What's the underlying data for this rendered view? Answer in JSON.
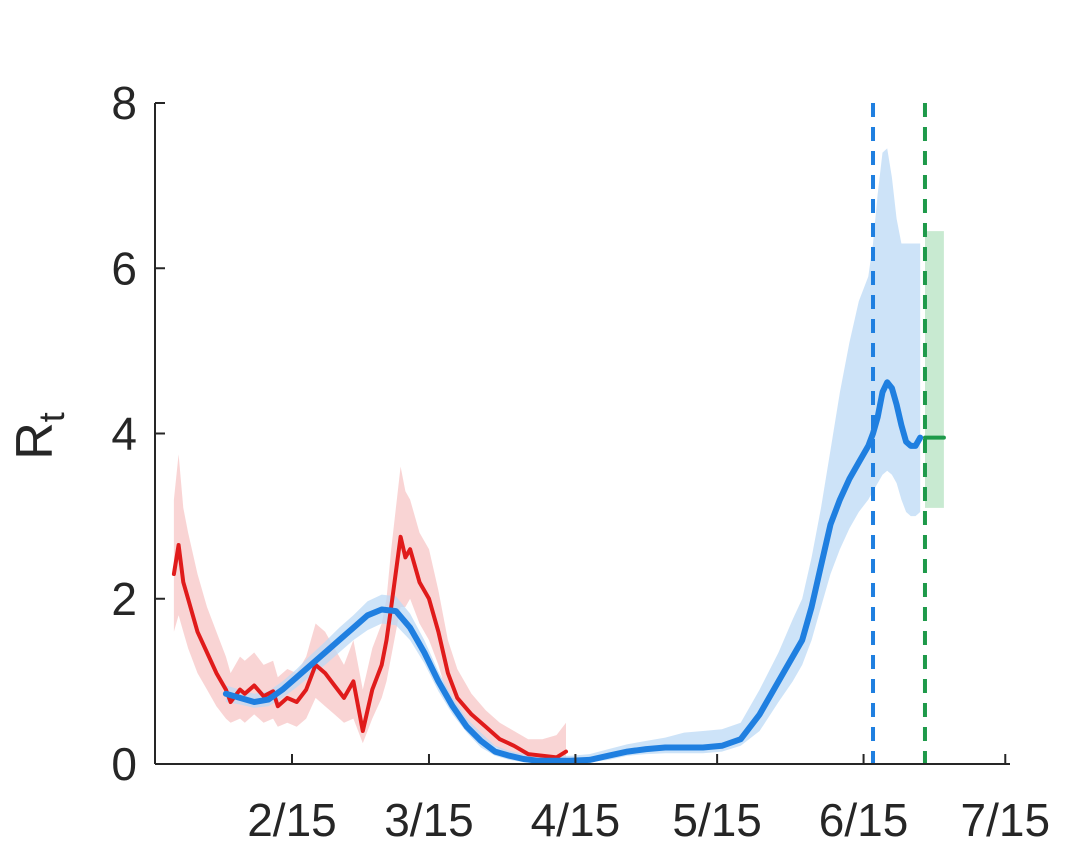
{
  "chart_data": {
    "type": "line",
    "title": "",
    "xlabel": "",
    "ylabel": "R",
    "ylabel_subscript": "t",
    "ylim": [
      0,
      8
    ],
    "xlim": [
      "2020-01-17",
      "2020-07-16"
    ],
    "yticks": [
      {
        "value": 0,
        "label": "0"
      },
      {
        "value": 2,
        "label": "2"
      },
      {
        "value": 4,
        "label": "4"
      },
      {
        "value": 6,
        "label": "6"
      },
      {
        "value": 8,
        "label": "8"
      }
    ],
    "xticks": [
      {
        "date": "2020-02-15",
        "label": "2/15"
      },
      {
        "date": "2020-03-15",
        "label": "3/15"
      },
      {
        "date": "2020-04-15",
        "label": "4/15"
      },
      {
        "date": "2020-05-15",
        "label": "5/15"
      },
      {
        "date": "2020-06-15",
        "label": "6/15"
      },
      {
        "date": "2020-07-15",
        "label": "7/15"
      }
    ],
    "grid": false,
    "legend": "none",
    "colors": {
      "red_line": "#e01b1b",
      "red_band": "#f7c6c6",
      "blue_line": "#1f7fe0",
      "blue_band": "#bcdaf6",
      "green_line": "#1e9a4a",
      "green_band": "#b6e3c2",
      "axis": "#262626"
    },
    "vlines": [
      {
        "date": "2020-06-17",
        "style": "dashed",
        "color": "#1f7fe0"
      },
      {
        "date": "2020-06-28",
        "style": "dashed",
        "color": "#1e9a4a"
      }
    ],
    "series": [
      {
        "color": "#e01b1b",
        "band_color": "#f7c6c6",
        "x": [
          "2020-01-21",
          "2020-01-22",
          "2020-01-23",
          "2020-01-24",
          "2020-01-26",
          "2020-01-28",
          "2020-01-30",
          "2020-02-01",
          "2020-02-02",
          "2020-02-04",
          "2020-02-05",
          "2020-02-07",
          "2020-02-09",
          "2020-02-11",
          "2020-02-12",
          "2020-02-14",
          "2020-02-16",
          "2020-02-18",
          "2020-02-20",
          "2020-02-22",
          "2020-02-24",
          "2020-02-26",
          "2020-02-28",
          "2020-03-01",
          "2020-03-03",
          "2020-03-05",
          "2020-03-06",
          "2020-03-07",
          "2020-03-09",
          "2020-03-10",
          "2020-03-11",
          "2020-03-13",
          "2020-03-15",
          "2020-03-17",
          "2020-03-19",
          "2020-03-21",
          "2020-03-24",
          "2020-03-27",
          "2020-03-30",
          "2020-04-02",
          "2020-04-05",
          "2020-04-08",
          "2020-04-11",
          "2020-04-13"
        ],
        "y": [
          2.3,
          2.65,
          2.2,
          2.0,
          1.6,
          1.35,
          1.1,
          0.9,
          0.75,
          0.9,
          0.85,
          0.95,
          0.82,
          0.88,
          0.7,
          0.8,
          0.75,
          0.9,
          1.2,
          1.1,
          0.95,
          0.8,
          1.0,
          0.4,
          0.9,
          1.2,
          1.5,
          1.9,
          2.75,
          2.5,
          2.6,
          2.2,
          2.0,
          1.6,
          1.1,
          0.8,
          0.6,
          0.45,
          0.3,
          0.22,
          0.12,
          0.1,
          0.08,
          0.15
        ],
        "lower": [
          1.6,
          1.8,
          1.6,
          1.4,
          1.1,
          0.9,
          0.7,
          0.55,
          0.5,
          0.55,
          0.5,
          0.6,
          0.5,
          0.55,
          0.45,
          0.5,
          0.45,
          0.55,
          0.8,
          0.7,
          0.6,
          0.5,
          0.55,
          0.25,
          0.55,
          0.8,
          1.0,
          1.3,
          1.9,
          1.9,
          2.0,
          1.7,
          1.5,
          1.2,
          0.8,
          0.55,
          0.4,
          0.28,
          0.18,
          0.1,
          0.05,
          0.03,
          0.02,
          0.05
        ],
        "upper": [
          3.2,
          3.75,
          3.1,
          2.8,
          2.3,
          1.9,
          1.6,
          1.3,
          1.1,
          1.3,
          1.25,
          1.35,
          1.2,
          1.25,
          1.05,
          1.15,
          1.1,
          1.3,
          1.7,
          1.6,
          1.4,
          1.2,
          1.5,
          0.9,
          1.4,
          1.7,
          2.0,
          2.6,
          3.6,
          3.3,
          3.2,
          2.8,
          2.6,
          2.1,
          1.5,
          1.15,
          0.85,
          0.65,
          0.5,
          0.4,
          0.3,
          0.3,
          0.35,
          0.5
        ]
      },
      {
        "color": "#1f7fe0",
        "band_color": "#bcdaf6",
        "x": [
          "2020-02-01",
          "2020-02-04",
          "2020-02-07",
          "2020-02-10",
          "2020-02-13",
          "2020-02-16",
          "2020-02-19",
          "2020-02-22",
          "2020-02-25",
          "2020-02-28",
          "2020-03-02",
          "2020-03-05",
          "2020-03-08",
          "2020-03-11",
          "2020-03-14",
          "2020-03-17",
          "2020-03-20",
          "2020-03-23",
          "2020-03-26",
          "2020-03-29",
          "2020-04-01",
          "2020-04-04",
          "2020-04-07",
          "2020-04-10",
          "2020-04-14",
          "2020-04-18",
          "2020-04-22",
          "2020-04-26",
          "2020-04-30",
          "2020-05-04",
          "2020-05-08",
          "2020-05-12",
          "2020-05-16",
          "2020-05-20",
          "2020-05-24",
          "2020-05-28",
          "2020-05-31",
          "2020-06-02",
          "2020-06-04",
          "2020-06-06",
          "2020-06-08",
          "2020-06-10",
          "2020-06-12",
          "2020-06-14",
          "2020-06-16",
          "2020-06-17",
          "2020-06-18",
          "2020-06-19",
          "2020-06-20",
          "2020-06-21",
          "2020-06-22",
          "2020-06-23",
          "2020-06-24",
          "2020-06-25",
          "2020-06-26",
          "2020-06-27"
        ],
        "y": [
          0.85,
          0.8,
          0.75,
          0.78,
          0.9,
          1.05,
          1.2,
          1.35,
          1.5,
          1.65,
          1.8,
          1.87,
          1.85,
          1.65,
          1.35,
          1.0,
          0.7,
          0.45,
          0.28,
          0.15,
          0.1,
          0.06,
          0.04,
          0.04,
          0.04,
          0.05,
          0.1,
          0.15,
          0.18,
          0.2,
          0.2,
          0.2,
          0.22,
          0.3,
          0.6,
          1.0,
          1.3,
          1.5,
          1.9,
          2.4,
          2.9,
          3.2,
          3.45,
          3.65,
          3.85,
          4.0,
          4.2,
          4.5,
          4.62,
          4.55,
          4.35,
          4.1,
          3.9,
          3.85,
          3.85,
          3.95
        ],
        "lower": [
          0.75,
          0.72,
          0.68,
          0.7,
          0.8,
          0.93,
          1.07,
          1.2,
          1.35,
          1.5,
          1.62,
          1.7,
          1.68,
          1.5,
          1.22,
          0.88,
          0.6,
          0.38,
          0.2,
          0.1,
          0.05,
          0.02,
          0.01,
          0.01,
          0.01,
          0.02,
          0.05,
          0.1,
          0.12,
          0.13,
          0.13,
          0.13,
          0.15,
          0.22,
          0.4,
          0.75,
          1.0,
          1.2,
          1.5,
          1.9,
          2.3,
          2.6,
          2.85,
          3.05,
          3.2,
          3.3,
          3.4,
          3.5,
          3.55,
          3.5,
          3.4,
          3.2,
          3.05,
          3.0,
          3.0,
          3.05
        ],
        "upper": [
          0.95,
          0.9,
          0.85,
          0.88,
          1.0,
          1.15,
          1.32,
          1.48,
          1.65,
          1.8,
          1.97,
          2.05,
          2.03,
          1.82,
          1.5,
          1.12,
          0.8,
          0.55,
          0.38,
          0.22,
          0.16,
          0.12,
          0.1,
          0.1,
          0.1,
          0.12,
          0.18,
          0.24,
          0.28,
          0.32,
          0.38,
          0.4,
          0.42,
          0.5,
          0.9,
          1.35,
          1.75,
          2.0,
          2.5,
          3.1,
          3.8,
          4.5,
          5.1,
          5.6,
          5.9,
          6.3,
          6.9,
          7.4,
          7.45,
          7.1,
          6.6,
          6.3,
          6.3,
          6.3,
          6.3,
          6.3
        ]
      },
      {
        "color": "#1e9a4a",
        "band_color": "#b6e3c2",
        "x": [
          "2020-06-28",
          "2020-07-02"
        ],
        "y": [
          3.95,
          3.95
        ],
        "lower": [
          3.1,
          3.1
        ],
        "upper": [
          6.45,
          6.45
        ]
      }
    ]
  }
}
